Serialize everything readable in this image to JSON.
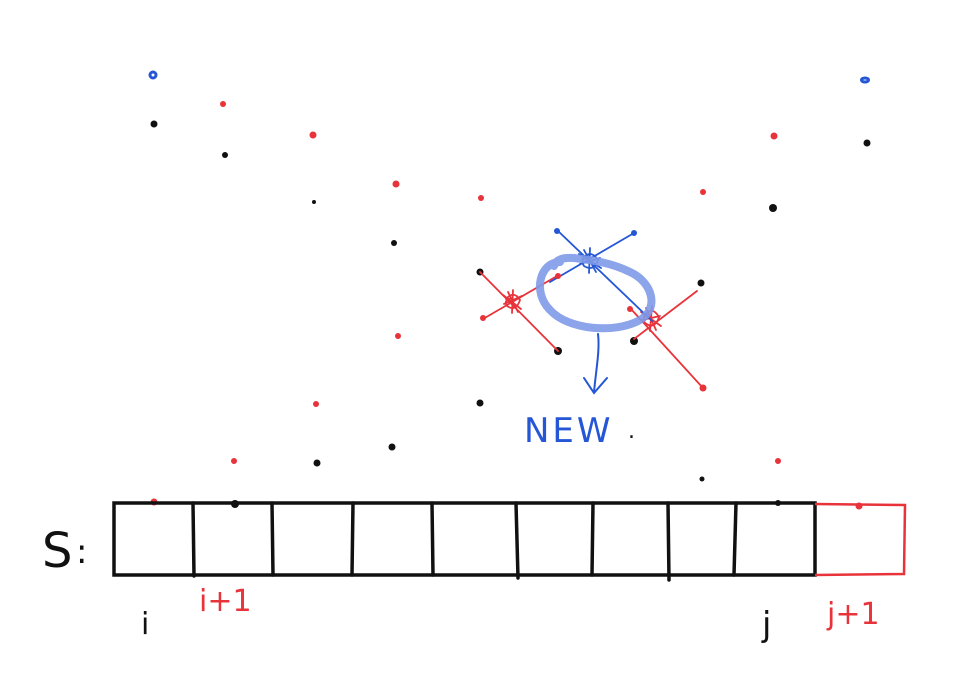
{
  "array": {
    "name": "S",
    "separator": ":",
    "cell_count": 9,
    "extra_cell_count": 1
  },
  "labels": {
    "i": "i",
    "i_plus_1": "i+1",
    "j": "j",
    "j_plus_1": "j+1",
    "new": "NEW",
    "new_dot": "."
  },
  "colors": {
    "black_points": "#111111",
    "red_points": "#e8333a",
    "blue_points": "#2456d6",
    "highlight": "#7f9ae8",
    "array_outline": "#111111",
    "extra_cell": "#e8333a"
  }
}
